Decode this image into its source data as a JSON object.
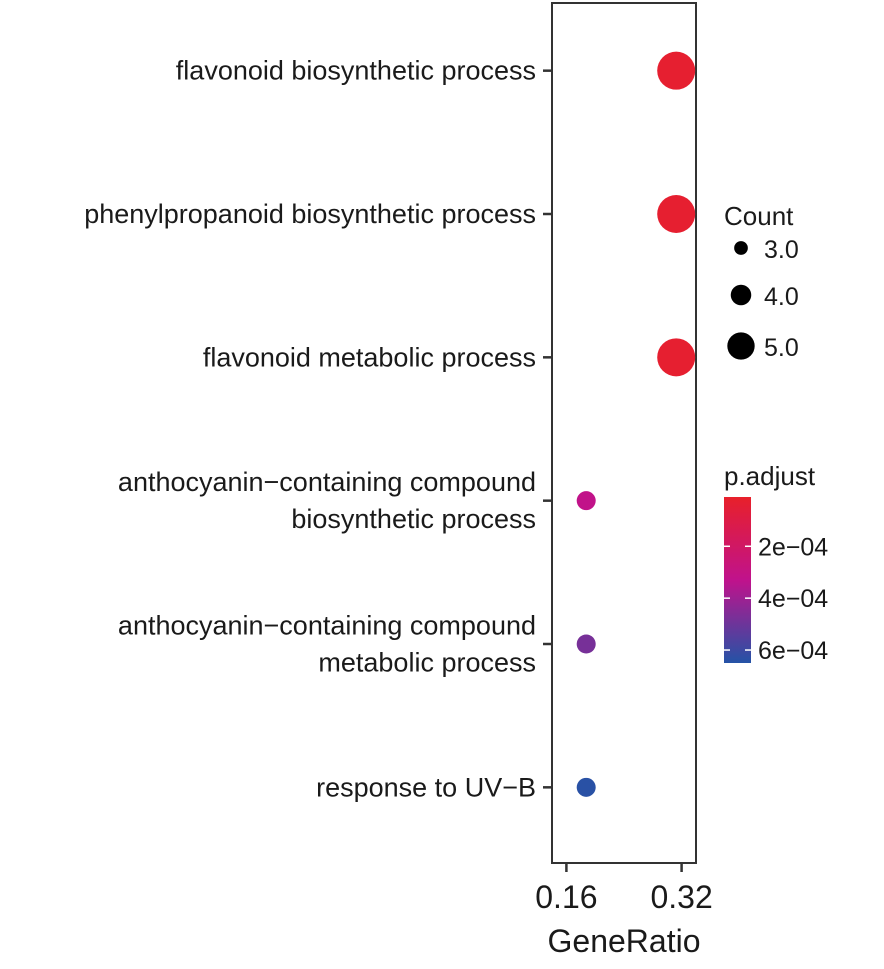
{
  "chart_data": {
    "type": "scatter",
    "subtype": "dot-plot",
    "title": "",
    "xlabel": "GeneRatio",
    "ylabel": "",
    "x_ticks": [
      "0.16",
      "0.32"
    ],
    "xlim": [
      0.14,
      0.34
    ],
    "terms": [
      {
        "label_lines": [
          "flavonoid biosynthetic process"
        ],
        "gene_ratio": 0.3125,
        "count": 5,
        "p_adjust": 3e-05
      },
      {
        "label_lines": [
          "phenylpropanoid biosynthetic process"
        ],
        "gene_ratio": 0.3125,
        "count": 5,
        "p_adjust": 3e-05
      },
      {
        "label_lines": [
          "flavonoid metabolic process"
        ],
        "gene_ratio": 0.3125,
        "count": 5,
        "p_adjust": 3e-05
      },
      {
        "label_lines": [
          "anthocyanin−containing compound",
          "biosynthetic process"
        ],
        "gene_ratio": 0.1875,
        "count": 3,
        "p_adjust": 0.00032
      },
      {
        "label_lines": [
          "anthocyanin−containing compound",
          "metabolic process"
        ],
        "gene_ratio": 0.1875,
        "count": 3,
        "p_adjust": 0.00048
      },
      {
        "label_lines": [
          "response to UV−B"
        ],
        "gene_ratio": 0.1875,
        "count": 3,
        "p_adjust": 0.00064
      }
    ],
    "size_legend": {
      "title": "Count",
      "entries": [
        {
          "label": "3.0",
          "value": 3
        },
        {
          "label": "4.0",
          "value": 4
        },
        {
          "label": "5.0",
          "value": 5
        }
      ]
    },
    "color_legend": {
      "title": "p.adjust",
      "ticks": [
        {
          "label": "2e−04",
          "value": 0.0002
        },
        {
          "label": "4e−04",
          "value": 0.0004
        },
        {
          "label": "6e−04",
          "value": 0.0006
        }
      ],
      "range": [
        1e-05,
        0.00065
      ],
      "colors": {
        "low": "#e8202a",
        "mid": "#c0128c",
        "high": "#2453a6"
      }
    },
    "grid": false,
    "legend_position": "right"
  }
}
